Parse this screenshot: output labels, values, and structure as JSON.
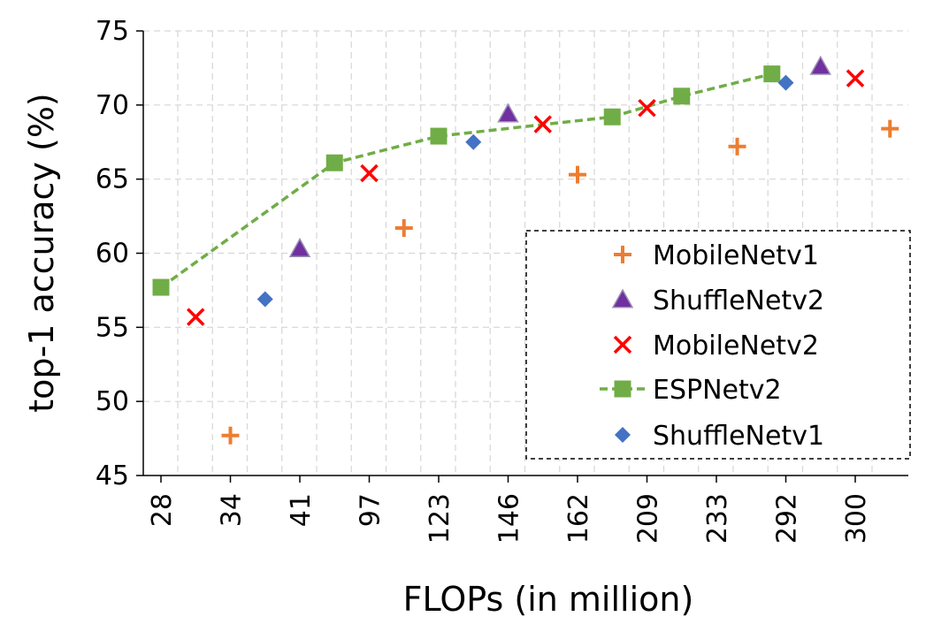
{
  "chart_data": {
    "type": "scatter",
    "xlabel": "FLOPs (in million)",
    "ylabel": "top-1 accuracy (%)",
    "ylim": [
      45,
      75
    ],
    "yticks": [
      "45",
      "50",
      "55",
      "60",
      "65",
      "70",
      "75"
    ],
    "xticks": [
      "28",
      "34",
      "41",
      "97",
      "123",
      "146",
      "162",
      "209",
      "233",
      "292",
      "300"
    ],
    "x_scale": "categorical-index",
    "grid": true,
    "legend_position": "lower-right",
    "series": [
      {
        "name": "MobileNetv1",
        "marker": "plus",
        "color": "#ED7D31",
        "points": [
          {
            "x": 1.0,
            "y": 47.7
          },
          {
            "x": 3.5,
            "y": 61.7
          },
          {
            "x": 6.0,
            "y": 65.3
          },
          {
            "x": 8.3,
            "y": 67.2
          },
          {
            "x": 10.5,
            "y": 68.4
          }
        ]
      },
      {
        "name": "ShuffleNetv2",
        "marker": "triangle",
        "color": "#7030A0",
        "points": [
          {
            "x": 2.0,
            "y": 60.3
          },
          {
            "x": 5.0,
            "y": 69.4
          },
          {
            "x": 9.5,
            "y": 72.6
          }
        ]
      },
      {
        "name": "MobileNetv2",
        "marker": "x",
        "color": "#FF0000",
        "points": [
          {
            "x": 0.5,
            "y": 55.7
          },
          {
            "x": 3.0,
            "y": 65.4
          },
          {
            "x": 5.5,
            "y": 68.7
          },
          {
            "x": 7.0,
            "y": 69.8
          },
          {
            "x": 10.0,
            "y": 71.8
          }
        ]
      },
      {
        "name": "ESPNetv2",
        "marker": "square-line",
        "color": "#70AD47",
        "points": [
          {
            "x": 0.0,
            "y": 57.7
          },
          {
            "x": 2.5,
            "y": 66.1
          },
          {
            "x": 4.0,
            "y": 67.9
          },
          {
            "x": 6.5,
            "y": 69.2
          },
          {
            "x": 7.5,
            "y": 70.6
          },
          {
            "x": 8.8,
            "y": 72.1
          }
        ]
      },
      {
        "name": "ShuffleNetv1",
        "marker": "diamond",
        "color": "#4472C4",
        "points": [
          {
            "x": 1.5,
            "y": 56.9
          },
          {
            "x": 4.5,
            "y": 67.5
          },
          {
            "x": 9.0,
            "y": 71.5
          }
        ]
      }
    ]
  }
}
